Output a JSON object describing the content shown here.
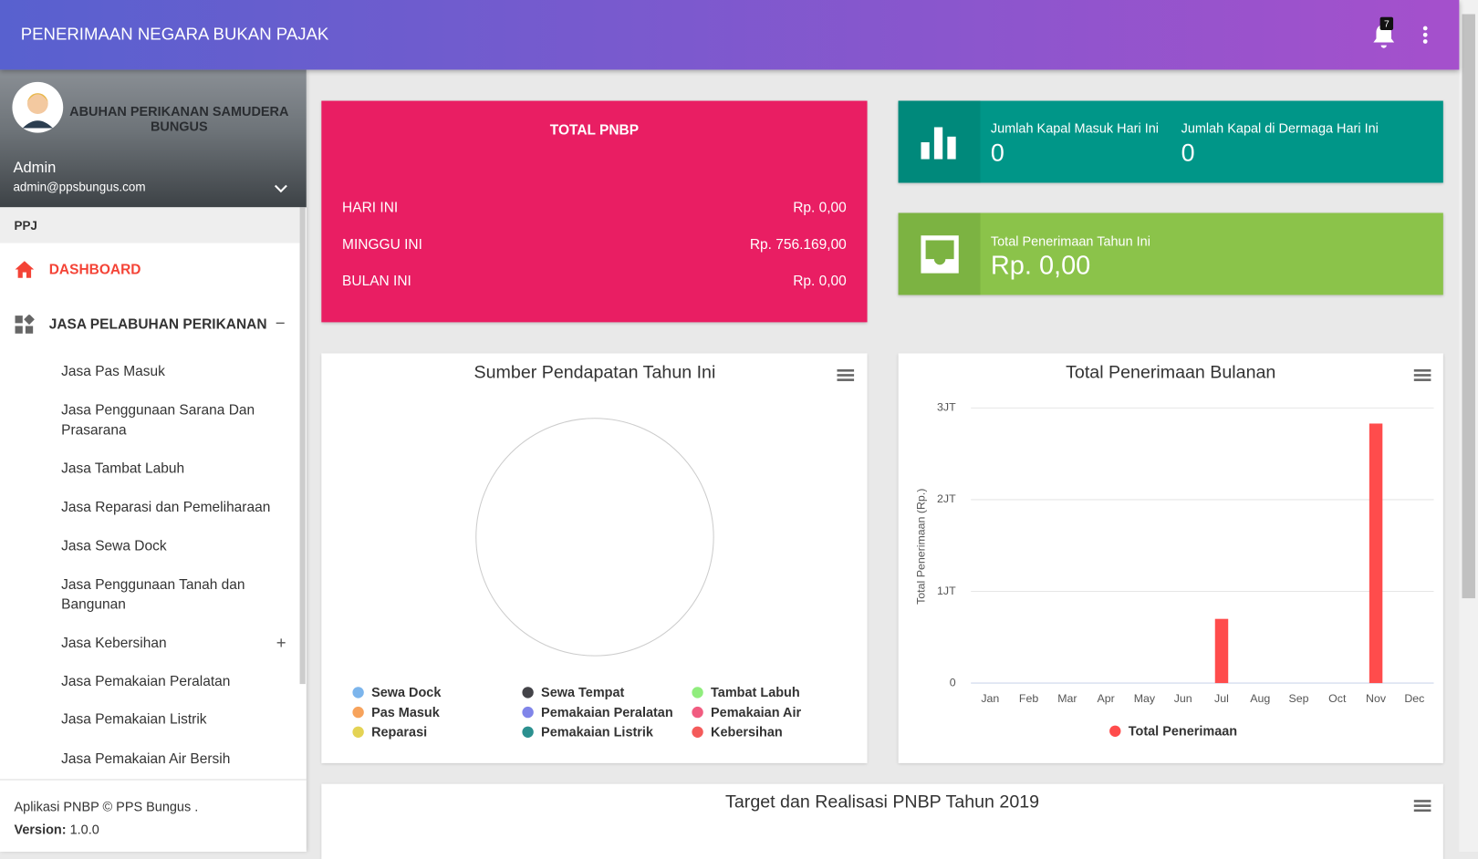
{
  "header": {
    "title": "PENERIMAAN NEGARA BUKAN PAJAK",
    "notification_count": 7
  },
  "user": {
    "name": "Admin",
    "email": "admin@ppsbungus.com",
    "banner_text": "ABUHAN PERIKANAN SAMUDERA BUNGUS"
  },
  "sidebar": {
    "section": "PPJ",
    "menu": [
      "DASHBOARD",
      "JASA PELABUHAN PERIKANAN"
    ],
    "submenu": [
      "Jasa Pas Masuk",
      "Jasa Penggunaan Sarana Dan Prasarana",
      "Jasa Tambat Labuh",
      "Jasa Reparasi dan Pemeliharaan",
      "Jasa Sewa Dock",
      "Jasa Penggunaan Tanah dan Bangunan",
      "Jasa Kebersihan",
      "Jasa Pemakaian Peralatan",
      "Jasa Pemakaian Listrik",
      "Jasa Pemakaian Air Bersih"
    ],
    "footer": {
      "copyright": "Aplikasi PNBP © PPS Bungus .",
      "version_label": "Version:",
      "version": "1.0.0"
    }
  },
  "total_pnbp": {
    "title": "TOTAL PNBP",
    "rows": [
      [
        "HARI INI",
        "Rp. 0,00"
      ],
      [
        "MINGGU INI",
        "Rp. 756.169,00"
      ],
      [
        "BULAN INI",
        "Rp. 0,00"
      ]
    ]
  },
  "ship_box": [
    {
      "label": "Jumlah Kapal Masuk Hari Ini",
      "value": 0
    },
    {
      "label": "Jumlah Kapal di Dermaga Hari Ini",
      "value": 0
    }
  ],
  "revenue_box": {
    "label": "Total Penerimaan Tahun Ini",
    "value": "Rp. 0,00"
  },
  "chart_data": [
    {
      "type": "pie",
      "title": "Sumber Pendapatan Tahun Ini",
      "series": [
        {
          "name": "Sewa Dock",
          "color": "#7cb5ec"
        },
        {
          "name": "Sewa Tempat",
          "color": "#434348"
        },
        {
          "name": "Tambat Labuh",
          "color": "#90ed7d"
        },
        {
          "name": "Pas Masuk",
          "color": "#f7a35c"
        },
        {
          "name": "Pemakaian Peralatan",
          "color": "#8085e9"
        },
        {
          "name": "Pemakaian Air",
          "color": "#f15c80"
        },
        {
          "name": "Reparasi",
          "color": "#e4d354"
        },
        {
          "name": "Pemakaian Listrik",
          "color": "#2b908f"
        },
        {
          "name": "Kebersihan",
          "color": "#f45b5b"
        }
      ]
    },
    {
      "type": "bar",
      "title": "Total Penerimaan Bulanan",
      "y_label": "Total Penerimaan (Rp.)",
      "categories": [
        "Jan",
        "Feb",
        "Mar",
        "Apr",
        "May",
        "Jun",
        "Jul",
        "Aug",
        "Sep",
        "Oct",
        "Nov",
        "Dec"
      ],
      "series": [
        {
          "name": "Total Penerimaan",
          "color": "#ff4c4c",
          "values": [
            0,
            0,
            0,
            0,
            0,
            0,
            700000,
            0,
            0,
            0,
            2830000,
            0
          ]
        }
      ],
      "ylim": [
        0,
        3000000
      ],
      "yticks": [
        0,
        {
          "value": 1000000,
          "label": "1JT"
        },
        {
          "value": 2000000,
          "label": "2JT"
        },
        {
          "value": 3000000,
          "label": "3JT"
        }
      ],
      "grid": true
    },
    {
      "type": "bar",
      "title": "Target dan Realisasi PNBP Tahun 2019"
    }
  ]
}
